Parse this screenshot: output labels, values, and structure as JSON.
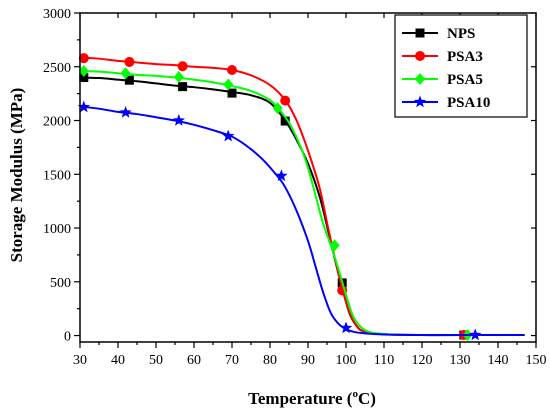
{
  "chart_data": {
    "type": "line",
    "xlabel_main": "Temperature (",
    "xlabel_sup": "o",
    "xlabel_tail": "C)",
    "ylabel": "Storage Modulus (MPa)",
    "xlim": [
      30,
      150
    ],
    "ylim": [
      -60,
      3000
    ],
    "x_ticks": [
      30,
      40,
      50,
      60,
      70,
      80,
      90,
      100,
      110,
      120,
      130,
      140,
      150
    ],
    "y_ticks": [
      0,
      500,
      1000,
      1500,
      2000,
      2500,
      3000
    ],
    "legend_position": "top-right",
    "series": [
      {
        "name": "NPS",
        "color": "#000000",
        "marker": "square",
        "curve": [
          [
            30,
            2400
          ],
          [
            35,
            2395
          ],
          [
            40,
            2380
          ],
          [
            45,
            2365
          ],
          [
            50,
            2345
          ],
          [
            55,
            2325
          ],
          [
            60,
            2310
          ],
          [
            65,
            2290
          ],
          [
            70,
            2265
          ],
          [
            75,
            2235
          ],
          [
            80,
            2165
          ],
          [
            84,
            2000
          ],
          [
            87,
            1820
          ],
          [
            90,
            1600
          ],
          [
            93,
            1300
          ],
          [
            95,
            1020
          ],
          [
            97,
            720
          ],
          [
            99,
            440
          ],
          [
            101,
            200
          ],
          [
            103,
            80
          ],
          [
            105,
            35
          ],
          [
            110,
            12
          ],
          [
            120,
            5
          ],
          [
            131,
            5
          ],
          [
            147,
            5
          ]
        ],
        "markers": [
          [
            31,
            2400
          ],
          [
            43,
            2375
          ],
          [
            57,
            2315
          ],
          [
            70,
            2255
          ],
          [
            84,
            1995
          ],
          [
            99,
            490
          ],
          [
            131,
            5
          ]
        ]
      },
      {
        "name": "PSA3",
        "color": "#ff0000",
        "marker": "circle",
        "curve": [
          [
            30,
            2585
          ],
          [
            35,
            2575
          ],
          [
            40,
            2555
          ],
          [
            45,
            2540
          ],
          [
            50,
            2525
          ],
          [
            55,
            2515
          ],
          [
            60,
            2500
          ],
          [
            65,
            2490
          ],
          [
            70,
            2470
          ],
          [
            75,
            2420
          ],
          [
            80,
            2330
          ],
          [
            84,
            2190
          ],
          [
            87,
            2000
          ],
          [
            90,
            1720
          ],
          [
            93,
            1380
          ],
          [
            95,
            1050
          ],
          [
            97,
            730
          ],
          [
            99,
            440
          ],
          [
            101,
            210
          ],
          [
            103,
            80
          ],
          [
            105,
            35
          ],
          [
            110,
            12
          ],
          [
            120,
            5
          ],
          [
            131,
            5
          ],
          [
            147,
            5
          ]
        ],
        "markers": [
          [
            31,
            2580
          ],
          [
            43,
            2545
          ],
          [
            57,
            2505
          ],
          [
            70,
            2470
          ],
          [
            84,
            2185
          ],
          [
            99,
            420
          ],
          [
            131,
            5
          ]
        ]
      },
      {
        "name": "PSA5",
        "color": "#00ff00",
        "marker": "diamond",
        "curve": [
          [
            30,
            2460
          ],
          [
            35,
            2455
          ],
          [
            40,
            2440
          ],
          [
            45,
            2425
          ],
          [
            50,
            2415
          ],
          [
            55,
            2400
          ],
          [
            60,
            2380
          ],
          [
            65,
            2355
          ],
          [
            70,
            2320
          ],
          [
            75,
            2275
          ],
          [
            80,
            2190
          ],
          [
            82,
            2120
          ],
          [
            85,
            1980
          ],
          [
            88,
            1760
          ],
          [
            90,
            1560
          ],
          [
            92,
            1300
          ],
          [
            94,
            1040
          ],
          [
            96,
            840
          ],
          [
            98,
            620
          ],
          [
            100,
            380
          ],
          [
            102,
            170
          ],
          [
            105,
            50
          ],
          [
            110,
            15
          ],
          [
            120,
            5
          ],
          [
            132,
            5
          ],
          [
            147,
            5
          ]
        ],
        "markers": [
          [
            31,
            2460
          ],
          [
            42,
            2440
          ],
          [
            56,
            2405
          ],
          [
            69,
            2335
          ],
          [
            82,
            2115
          ],
          [
            97,
            840
          ],
          [
            132,
            5
          ]
        ]
      },
      {
        "name": "PSA10",
        "color": "#0000ff",
        "marker": "star",
        "curve": [
          [
            30,
            2130
          ],
          [
            35,
            2110
          ],
          [
            40,
            2080
          ],
          [
            45,
            2060
          ],
          [
            50,
            2030
          ],
          [
            55,
            2000
          ],
          [
            60,
            1960
          ],
          [
            65,
            1910
          ],
          [
            70,
            1850
          ],
          [
            74,
            1760
          ],
          [
            78,
            1640
          ],
          [
            82,
            1480
          ],
          [
            84,
            1380
          ],
          [
            87,
            1160
          ],
          [
            90,
            880
          ],
          [
            92,
            640
          ],
          [
            94,
            400
          ],
          [
            96,
            210
          ],
          [
            98,
            110
          ],
          [
            100,
            60
          ],
          [
            102,
            35
          ],
          [
            105,
            20
          ],
          [
            110,
            10
          ],
          [
            120,
            5
          ],
          [
            134,
            5
          ],
          [
            147,
            5
          ]
        ],
        "markers": [
          [
            31,
            2125
          ],
          [
            42,
            2075
          ],
          [
            56,
            2000
          ],
          [
            69,
            1855
          ],
          [
            83,
            1485
          ],
          [
            100,
            70
          ],
          [
            134,
            5
          ]
        ]
      }
    ]
  }
}
